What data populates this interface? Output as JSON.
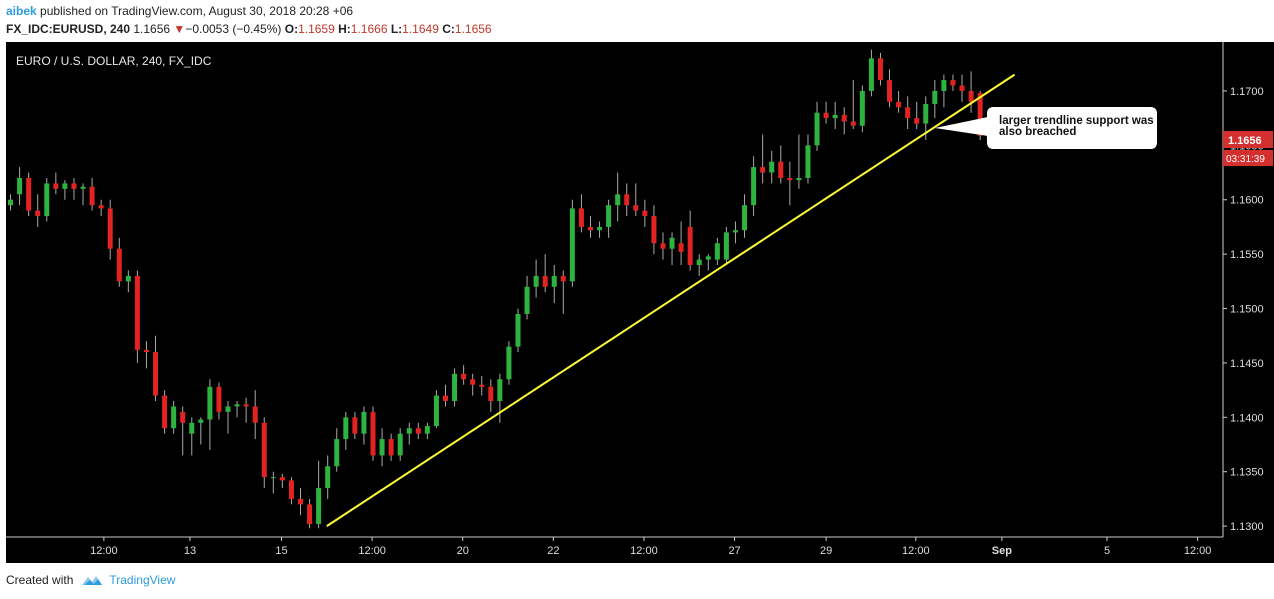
{
  "header": {
    "author": "aibek",
    "published_text": "published on TradingView.com, August 30, 2018 20:28 +06",
    "symbol": "FX_IDC:EURUSD, 240",
    "last": "1.1656",
    "change": "−0.0053 (−0.45%)",
    "open_label": "O:",
    "open": "1.1659",
    "high_label": "H:",
    "high": "1.1666",
    "low_label": "L:",
    "low": "1.1649",
    "close_label": "C:",
    "close": "1.1656"
  },
  "footer": {
    "created_with": "Created with",
    "brand": "TradingView"
  },
  "colors": {
    "background": "#000000",
    "up": "#2db33f",
    "down": "#e32222",
    "trendline": "#ffff33",
    "price_badge": "#d32f2f"
  },
  "chart_data": {
    "type": "candlestick",
    "title": "EURO / U.S. DOLLAR, 240, FX_IDC",
    "annotation": "larger trendline support was also breached",
    "price_label": "1.1656",
    "countdown_label": "03:31:39",
    "y_ticks": [
      "1.1300",
      "1.1350",
      "1.1400",
      "1.1450",
      "1.1500",
      "1.1550",
      "1.1600",
      "1.1650",
      "1.1700"
    ],
    "ylim": [
      1.129,
      1.1745
    ],
    "x_ticks": [
      "12:00",
      "13",
      "15",
      "12:00",
      "20",
      "22",
      "12:00",
      "27",
      "29",
      "12:00",
      "Sep",
      "5",
      "12:00"
    ],
    "x_tick_positions": [
      10.3,
      19.8,
      29.9,
      39.9,
      49.9,
      59.9,
      69.9,
      79.9,
      90.0,
      99.9,
      109.4,
      121.0,
      131.0
    ],
    "x_range": [
      -0.5,
      133.8
    ],
    "trendline": {
      "from": [
        34.9,
        1.13
      ],
      "to": [
        110.8,
        1.1715
      ]
    },
    "candles": [
      {
        "o": 1.1595,
        "h": 1.1605,
        "l": 1.159,
        "c": 1.16
      },
      {
        "o": 1.1605,
        "h": 1.163,
        "l": 1.1595,
        "c": 1.162
      },
      {
        "o": 1.162,
        "h": 1.1625,
        "l": 1.1585,
        "c": 1.159
      },
      {
        "o": 1.159,
        "h": 1.1605,
        "l": 1.1575,
        "c": 1.1585
      },
      {
        "o": 1.1585,
        "h": 1.162,
        "l": 1.158,
        "c": 1.1615
      },
      {
        "o": 1.1615,
        "h": 1.1625,
        "l": 1.1605,
        "c": 1.161
      },
      {
        "o": 1.161,
        "h": 1.1618,
        "l": 1.16,
        "c": 1.1615
      },
      {
        "o": 1.1615,
        "h": 1.162,
        "l": 1.16,
        "c": 1.161
      },
      {
        "o": 1.161,
        "h": 1.1615,
        "l": 1.1595,
        "c": 1.1612
      },
      {
        "o": 1.1612,
        "h": 1.162,
        "l": 1.159,
        "c": 1.1595
      },
      {
        "o": 1.1595,
        "h": 1.16,
        "l": 1.1585,
        "c": 1.1592
      },
      {
        "o": 1.1592,
        "h": 1.16,
        "l": 1.1545,
        "c": 1.1555
      },
      {
        "o": 1.1555,
        "h": 1.1565,
        "l": 1.152,
        "c": 1.1525
      },
      {
        "o": 1.1525,
        "h": 1.1535,
        "l": 1.1515,
        "c": 1.153
      },
      {
        "o": 1.153,
        "h": 1.1535,
        "l": 1.145,
        "c": 1.1462
      },
      {
        "o": 1.1462,
        "h": 1.147,
        "l": 1.1445,
        "c": 1.146
      },
      {
        "o": 1.146,
        "h": 1.1475,
        "l": 1.1415,
        "c": 1.142
      },
      {
        "o": 1.142,
        "h": 1.1425,
        "l": 1.1385,
        "c": 1.139
      },
      {
        "o": 1.139,
        "h": 1.1415,
        "l": 1.1385,
        "c": 1.141
      },
      {
        "o": 1.1405,
        "h": 1.141,
        "l": 1.1365,
        "c": 1.1395
      },
      {
        "o": 1.1385,
        "h": 1.14,
        "l": 1.1365,
        "c": 1.1395
      },
      {
        "o": 1.1395,
        "h": 1.14,
        "l": 1.1375,
        "c": 1.1398
      },
      {
        "o": 1.1398,
        "h": 1.1435,
        "l": 1.137,
        "c": 1.1428
      },
      {
        "o": 1.1428,
        "h": 1.1432,
        "l": 1.1398,
        "c": 1.1405
      },
      {
        "o": 1.1405,
        "h": 1.1415,
        "l": 1.1385,
        "c": 1.141
      },
      {
        "o": 1.141,
        "h": 1.1415,
        "l": 1.14,
        "c": 1.1412
      },
      {
        "o": 1.1412,
        "h": 1.1418,
        "l": 1.1395,
        "c": 1.141
      },
      {
        "o": 1.141,
        "h": 1.1425,
        "l": 1.138,
        "c": 1.1395
      },
      {
        "o": 1.1395,
        "h": 1.14,
        "l": 1.1335,
        "c": 1.1345
      },
      {
        "o": 1.1345,
        "h": 1.135,
        "l": 1.133,
        "c": 1.1345
      },
      {
        "o": 1.1345,
        "h": 1.1348,
        "l": 1.1335,
        "c": 1.1342
      },
      {
        "o": 1.1342,
        "h": 1.1345,
        "l": 1.132,
        "c": 1.1325
      },
      {
        "o": 1.1325,
        "h": 1.1335,
        "l": 1.131,
        "c": 1.132
      },
      {
        "o": 1.132,
        "h": 1.1325,
        "l": 1.1298,
        "c": 1.1302
      },
      {
        "o": 1.1302,
        "h": 1.136,
        "l": 1.1298,
        "c": 1.1335
      },
      {
        "o": 1.1335,
        "h": 1.1365,
        "l": 1.1325,
        "c": 1.1355
      },
      {
        "o": 1.1355,
        "h": 1.139,
        "l": 1.135,
        "c": 1.138
      },
      {
        "o": 1.138,
        "h": 1.1405,
        "l": 1.137,
        "c": 1.14
      },
      {
        "o": 1.14,
        "h": 1.1405,
        "l": 1.138,
        "c": 1.1385
      },
      {
        "o": 1.1385,
        "h": 1.141,
        "l": 1.1375,
        "c": 1.1405
      },
      {
        "o": 1.1405,
        "h": 1.141,
        "l": 1.136,
        "c": 1.1365
      },
      {
        "o": 1.1365,
        "h": 1.139,
        "l": 1.1355,
        "c": 1.138
      },
      {
        "o": 1.138,
        "h": 1.1385,
        "l": 1.136,
        "c": 1.1365
      },
      {
        "o": 1.1365,
        "h": 1.139,
        "l": 1.136,
        "c": 1.1385
      },
      {
        "o": 1.1385,
        "h": 1.1395,
        "l": 1.1375,
        "c": 1.139
      },
      {
        "o": 1.139,
        "h": 1.1395,
        "l": 1.138,
        "c": 1.1385
      },
      {
        "o": 1.1385,
        "h": 1.1395,
        "l": 1.138,
        "c": 1.1392
      },
      {
        "o": 1.1392,
        "h": 1.1425,
        "l": 1.139,
        "c": 1.142
      },
      {
        "o": 1.142,
        "h": 1.143,
        "l": 1.141,
        "c": 1.1415
      },
      {
        "o": 1.1415,
        "h": 1.1445,
        "l": 1.141,
        "c": 1.144
      },
      {
        "o": 1.144,
        "h": 1.1448,
        "l": 1.143,
        "c": 1.1435
      },
      {
        "o": 1.1435,
        "h": 1.144,
        "l": 1.142,
        "c": 1.143
      },
      {
        "o": 1.143,
        "h": 1.1438,
        "l": 1.142,
        "c": 1.1428
      },
      {
        "o": 1.1428,
        "h": 1.1435,
        "l": 1.1405,
        "c": 1.1415
      },
      {
        "o": 1.1415,
        "h": 1.144,
        "l": 1.1395,
        "c": 1.1435
      },
      {
        "o": 1.1435,
        "h": 1.147,
        "l": 1.143,
        "c": 1.1465
      },
      {
        "o": 1.1465,
        "h": 1.15,
        "l": 1.146,
        "c": 1.1495
      },
      {
        "o": 1.1495,
        "h": 1.153,
        "l": 1.149,
        "c": 1.152
      },
      {
        "o": 1.152,
        "h": 1.1545,
        "l": 1.151,
        "c": 1.153
      },
      {
        "o": 1.153,
        "h": 1.155,
        "l": 1.1515,
        "c": 1.152
      },
      {
        "o": 1.152,
        "h": 1.154,
        "l": 1.1505,
        "c": 1.153
      },
      {
        "o": 1.153,
        "h": 1.1535,
        "l": 1.1495,
        "c": 1.1525
      },
      {
        "o": 1.1525,
        "h": 1.16,
        "l": 1.152,
        "c": 1.1592
      },
      {
        "o": 1.1592,
        "h": 1.1605,
        "l": 1.157,
        "c": 1.1575
      },
      {
        "o": 1.1575,
        "h": 1.1585,
        "l": 1.1565,
        "c": 1.1572
      },
      {
        "o": 1.1572,
        "h": 1.158,
        "l": 1.1565,
        "c": 1.1575
      },
      {
        "o": 1.1575,
        "h": 1.16,
        "l": 1.1565,
        "c": 1.1595
      },
      {
        "o": 1.1595,
        "h": 1.1625,
        "l": 1.158,
        "c": 1.1605
      },
      {
        "o": 1.1605,
        "h": 1.1615,
        "l": 1.1585,
        "c": 1.1595
      },
      {
        "o": 1.1595,
        "h": 1.1615,
        "l": 1.1585,
        "c": 1.159
      },
      {
        "o": 1.159,
        "h": 1.16,
        "l": 1.1575,
        "c": 1.1585
      },
      {
        "o": 1.1585,
        "h": 1.1595,
        "l": 1.155,
        "c": 1.156
      },
      {
        "o": 1.156,
        "h": 1.157,
        "l": 1.1545,
        "c": 1.1555
      },
      {
        "o": 1.1555,
        "h": 1.157,
        "l": 1.154,
        "c": 1.1565
      },
      {
        "o": 1.156,
        "h": 1.158,
        "l": 1.154,
        "c": 1.1552
      },
      {
        "o": 1.1575,
        "h": 1.159,
        "l": 1.1535,
        "c": 1.154
      },
      {
        "o": 1.154,
        "h": 1.155,
        "l": 1.153,
        "c": 1.1545
      },
      {
        "o": 1.1545,
        "h": 1.155,
        "l": 1.1535,
        "c": 1.1548
      },
      {
        "o": 1.1545,
        "h": 1.1565,
        "l": 1.154,
        "c": 1.156
      },
      {
        "o": 1.1545,
        "h": 1.1575,
        "l": 1.154,
        "c": 1.157
      },
      {
        "o": 1.157,
        "h": 1.158,
        "l": 1.156,
        "c": 1.1572
      },
      {
        "o": 1.1572,
        "h": 1.1605,
        "l": 1.1565,
        "c": 1.1595
      },
      {
        "o": 1.1595,
        "h": 1.164,
        "l": 1.1585,
        "c": 1.163
      },
      {
        "o": 1.163,
        "h": 1.166,
        "l": 1.1615,
        "c": 1.1625
      },
      {
        "o": 1.1625,
        "h": 1.1645,
        "l": 1.1615,
        "c": 1.1635
      },
      {
        "o": 1.1635,
        "h": 1.165,
        "l": 1.1615,
        "c": 1.162
      },
      {
        "o": 1.162,
        "h": 1.1635,
        "l": 1.1595,
        "c": 1.1618
      },
      {
        "o": 1.1618,
        "h": 1.166,
        "l": 1.161,
        "c": 1.162
      },
      {
        "o": 1.162,
        "h": 1.166,
        "l": 1.1615,
        "c": 1.165
      },
      {
        "o": 1.165,
        "h": 1.169,
        "l": 1.1645,
        "c": 1.168
      },
      {
        "o": 1.168,
        "h": 1.169,
        "l": 1.167,
        "c": 1.1675
      },
      {
        "o": 1.1675,
        "h": 1.169,
        "l": 1.1665,
        "c": 1.1678
      },
      {
        "o": 1.1678,
        "h": 1.1685,
        "l": 1.166,
        "c": 1.1672
      },
      {
        "o": 1.1672,
        "h": 1.171,
        "l": 1.1665,
        "c": 1.1668
      },
      {
        "o": 1.1668,
        "h": 1.1705,
        "l": 1.1662,
        "c": 1.17
      },
      {
        "o": 1.17,
        "h": 1.1738,
        "l": 1.1695,
        "c": 1.173
      },
      {
        "o": 1.173,
        "h": 1.1735,
        "l": 1.1705,
        "c": 1.171
      },
      {
        "o": 1.171,
        "h": 1.172,
        "l": 1.1685,
        "c": 1.169
      },
      {
        "o": 1.169,
        "h": 1.17,
        "l": 1.168,
        "c": 1.1685
      },
      {
        "o": 1.1685,
        "h": 1.1695,
        "l": 1.1665,
        "c": 1.1675
      },
      {
        "o": 1.1675,
        "h": 1.169,
        "l": 1.1665,
        "c": 1.167
      },
      {
        "o": 1.167,
        "h": 1.1695,
        "l": 1.1655,
        "c": 1.1688
      },
      {
        "o": 1.1688,
        "h": 1.171,
        "l": 1.1675,
        "c": 1.17
      },
      {
        "o": 1.17,
        "h": 1.1715,
        "l": 1.1685,
        "c": 1.171
      },
      {
        "o": 1.171,
        "h": 1.1715,
        "l": 1.17,
        "c": 1.1705
      },
      {
        "o": 1.1705,
        "h": 1.1715,
        "l": 1.169,
        "c": 1.17
      },
      {
        "o": 1.17,
        "h": 1.1718,
        "l": 1.168,
        "c": 1.169
      },
      {
        "o": 1.1698,
        "h": 1.17,
        "l": 1.1655,
        "c": 1.1659
      },
      {
        "o": 1.1659,
        "h": 1.1666,
        "l": 1.1649,
        "c": 1.1656
      }
    ]
  }
}
